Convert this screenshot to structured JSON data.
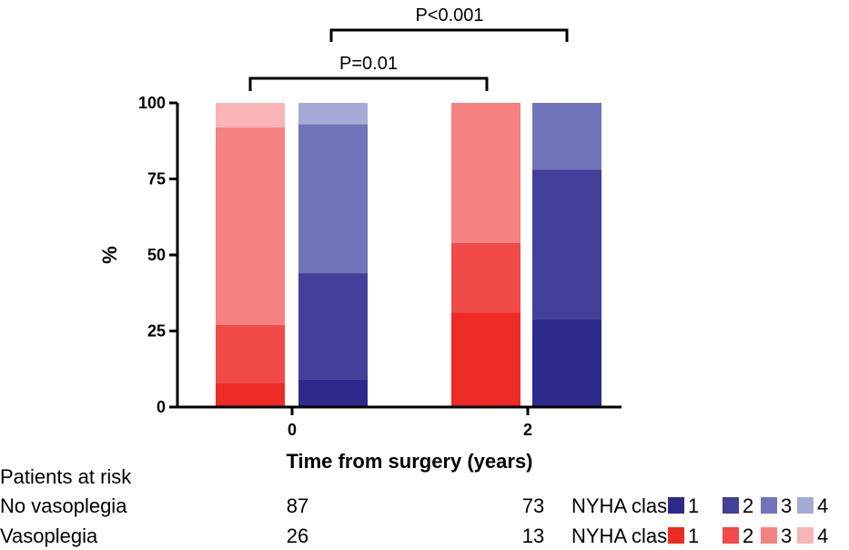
{
  "chart_data": {
    "type": "bar",
    "stacked": true,
    "ylabel": "%",
    "xlabel": "Time from surgery (years)",
    "ylim": [
      0,
      100
    ],
    "yticks": [
      0,
      25,
      50,
      75,
      100
    ],
    "categories": [
      "0",
      "2"
    ],
    "groups": [
      {
        "name": "Vasoplegia",
        "colors": [
          "#ee2a24",
          "#f04b47",
          "#f58280",
          "#f9b5b5"
        ],
        "segments_by_category": [
          [
            8,
            19,
            65,
            8
          ],
          [
            31,
            23,
            46,
            0
          ]
        ]
      },
      {
        "name": "No vasoplegia",
        "colors": [
          "#2e2a8c",
          "#433f9a",
          "#7075b9",
          "#a7aad6"
        ],
        "segments_by_category": [
          [
            9,
            35,
            49,
            7
          ],
          [
            29,
            49,
            22,
            0
          ]
        ]
      }
    ],
    "comparisons": [
      {
        "label": "P=0.01",
        "from": "Vasoplegia year 0",
        "to": "Vasoplegia year 2"
      },
      {
        "label": "P<0.001",
        "from": "No vasoplegia year 0",
        "to": "No vasoplegia year 2"
      }
    ]
  },
  "risk_table": {
    "title": "Patients at risk",
    "rows": [
      {
        "label": "No vasoplegia",
        "values": [
          "87",
          "73"
        ]
      },
      {
        "label": "Vasoplegia",
        "values": [
          "26",
          "13"
        ]
      }
    ]
  },
  "legend": {
    "label": "NYHA class",
    "classes": [
      "1",
      "2",
      "3",
      "4"
    ],
    "blue_colors": [
      "#2e2a8c",
      "#433f9a",
      "#7075b9",
      "#a7aad6"
    ],
    "red_colors": [
      "#ee2a24",
      "#f04b47",
      "#f58280",
      "#f9b5b5"
    ]
  }
}
